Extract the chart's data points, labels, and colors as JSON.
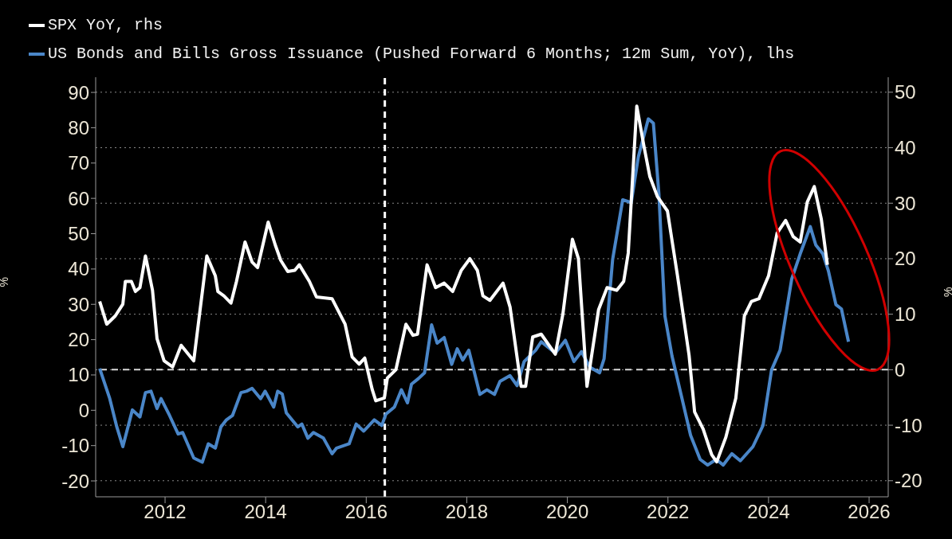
{
  "chart_data": {
    "type": "line",
    "xlim": [
      2010.62,
      2026.38
    ],
    "xticks": [
      2012,
      2014,
      2016,
      2018,
      2020,
      2022,
      2024,
      2026
    ],
    "ylim": [
      -24.5,
      94.3
    ],
    "yticks": [
      -20,
      -10,
      0,
      10,
      20,
      30,
      40,
      50,
      60,
      70,
      80,
      90
    ],
    "y2lim": [
      -22.9,
      52.7
    ],
    "y2ticks": [
      -20,
      -10,
      0,
      10,
      20,
      30,
      40,
      50
    ],
    "ylabel": "%",
    "y2label": "%",
    "grid": "y",
    "legend": "top left",
    "line_style": "solid",
    "marker": "none",
    "ref_lines": [
      {
        "axis": "x",
        "value": 2016.37,
        "color": "#ffffff",
        "line_style": "dashed"
      },
      {
        "axis": "y2",
        "value": 0,
        "color": "#d8d8d8",
        "line_style": "dashed"
      }
    ],
    "series": [
      {
        "name": "SPX YoY, rhs",
        "color": "#ffffff",
        "axis": "y2",
        "x": [
          2010.7,
          2010.84,
          2011.01,
          2011.16,
          2011.21,
          2011.33,
          2011.41,
          2011.5,
          2011.61,
          2011.75,
          2011.84,
          2011.98,
          2012.15,
          2012.32,
          2012.57,
          2012.83,
          2013.0,
          2013.05,
          2013.17,
          2013.31,
          2013.42,
          2013.59,
          2013.73,
          2013.84,
          2014.05,
          2014.19,
          2014.3,
          2014.44,
          2014.58,
          2014.67,
          2014.87,
          2015.01,
          2015.32,
          2015.58,
          2015.72,
          2015.86,
          2015.97,
          2016.12,
          2016.19,
          2016.36,
          2016.42,
          2016.59,
          2016.79,
          2016.93,
          2017.02,
          2017.21,
          2017.38,
          2017.55,
          2017.72,
          2017.89,
          2018.06,
          2018.21,
          2018.32,
          2018.46,
          2018.72,
          2018.86,
          2019.08,
          2019.17,
          2019.31,
          2019.48,
          2019.76,
          2019.91,
          2020.1,
          2020.22,
          2020.39,
          2020.62,
          2020.79,
          2020.98,
          2021.12,
          2021.21,
          2021.38,
          2021.52,
          2021.64,
          2021.79,
          2021.99,
          2022.19,
          2022.42,
          2022.53,
          2022.7,
          2022.87,
          2022.97,
          2023.15,
          2023.35,
          2023.52,
          2023.66,
          2023.81,
          2024.0,
          2024.17,
          2024.34,
          2024.49,
          2024.63,
          2024.77,
          2024.91,
          2025.05,
          2025.17
        ],
        "values": [
          12.3,
          8.2,
          9.7,
          11.8,
          15.9,
          15.9,
          14.1,
          14.8,
          20.5,
          14.3,
          5.6,
          1.6,
          0.5,
          4.4,
          1.6,
          20.5,
          16.9,
          14.1,
          13.3,
          12.0,
          15.9,
          23.0,
          19.4,
          18.4,
          26.6,
          22.5,
          19.7,
          17.7,
          17.9,
          18.9,
          15.9,
          13.1,
          12.8,
          8.2,
          2.3,
          1.0,
          2.1,
          -3.6,
          -5.6,
          -5.1,
          -1.5,
          0.0,
          8.2,
          6.2,
          6.4,
          18.9,
          14.8,
          15.6,
          14.1,
          17.9,
          20.0,
          17.9,
          13.3,
          12.5,
          15.6,
          11.3,
          -3.0,
          -3.0,
          5.9,
          6.4,
          2.8,
          10.0,
          23.5,
          20.0,
          -3.0,
          10.8,
          14.8,
          14.3,
          15.9,
          21.0,
          47.5,
          40.4,
          34.8,
          31.2,
          28.6,
          16.9,
          2.6,
          -7.6,
          -10.7,
          -15.3,
          -16.6,
          -12.2,
          -5.1,
          9.7,
          12.3,
          12.8,
          16.9,
          24.6,
          26.9,
          24.0,
          23.0,
          30.2,
          33.0,
          27.1,
          18.9
        ]
      },
      {
        "name": "US Bonds and Bills Gross Issuance (Pushed Forward 6 Months; 12m Sum, YoY), lhs",
        "color": "#4a86c8",
        "axis": "y",
        "x": [
          2010.7,
          2010.9,
          2011.04,
          2011.16,
          2011.35,
          2011.5,
          2011.61,
          2011.72,
          2011.84,
          2011.92,
          2012.09,
          2012.26,
          2012.35,
          2012.57,
          2012.74,
          2012.86,
          2013.0,
          2013.11,
          2013.22,
          2013.34,
          2013.51,
          2013.62,
          2013.73,
          2013.9,
          2013.99,
          2014.16,
          2014.24,
          2014.33,
          2014.41,
          2014.64,
          2014.72,
          2014.84,
          2014.95,
          2015.15,
          2015.32,
          2015.41,
          2015.66,
          2015.8,
          2015.95,
          2016.16,
          2016.31,
          2016.39,
          2016.56,
          2016.7,
          2016.82,
          2016.9,
          2017.04,
          2017.16,
          2017.3,
          2017.41,
          2017.55,
          2017.7,
          2017.81,
          2017.92,
          2018.04,
          2018.26,
          2018.4,
          2018.55,
          2018.66,
          2018.86,
          2019.0,
          2019.14,
          2019.37,
          2019.48,
          2019.76,
          2019.96,
          2020.13,
          2020.28,
          2020.45,
          2020.64,
          2020.73,
          2020.9,
          2021.1,
          2021.27,
          2021.41,
          2021.61,
          2021.71,
          2021.82,
          2021.94,
          2022.08,
          2022.28,
          2022.45,
          2022.64,
          2022.79,
          2022.96,
          2023.1,
          2023.27,
          2023.44,
          2023.69,
          2023.89,
          2024.06,
          2024.23,
          2024.46,
          2024.63,
          2024.83,
          2024.94,
          2025.08,
          2025.19,
          2025.34,
          2025.45,
          2025.59
        ],
        "values": [
          11.8,
          3.3,
          -4.7,
          -10.3,
          0.1,
          -1.9,
          5.0,
          5.4,
          0.5,
          3.3,
          -1.5,
          -6.7,
          -6.3,
          -13.5,
          -14.7,
          -9.5,
          -10.7,
          -4.7,
          -2.7,
          -1.5,
          5.0,
          5.4,
          6.2,
          3.3,
          5.4,
          0.9,
          5.4,
          4.6,
          -0.7,
          -4.7,
          -3.9,
          -7.9,
          -6.3,
          -7.9,
          -12.3,
          -10.7,
          -9.5,
          -3.9,
          -5.9,
          -2.7,
          -4.3,
          -1.1,
          0.9,
          5.8,
          2.1,
          7.4,
          9.0,
          10.6,
          24.2,
          19.0,
          20.6,
          13.0,
          17.4,
          14.2,
          17.0,
          4.5,
          5.8,
          4.5,
          8.2,
          9.8,
          7.0,
          13.8,
          17.0,
          19.4,
          16.2,
          19.8,
          13.8,
          16.6,
          12.2,
          10.6,
          14.6,
          42.7,
          59.6,
          58.8,
          71.7,
          82.5,
          81.3,
          61.2,
          26.7,
          15.4,
          3.3,
          -7.1,
          -13.9,
          -15.5,
          -13.9,
          -15.5,
          -12.3,
          -14.3,
          -10.3,
          -4.3,
          11.4,
          17.0,
          37.1,
          44.3,
          52.0,
          46.8,
          44.3,
          39.5,
          29.9,
          28.7,
          19.4
        ]
      }
    ]
  }
}
